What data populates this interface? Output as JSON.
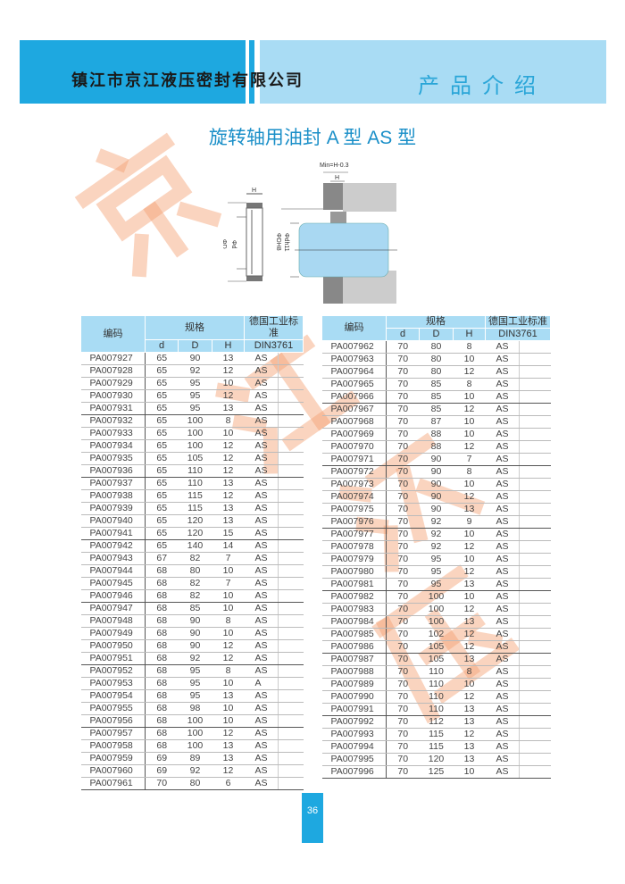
{
  "header": {
    "company": "镇江市京江液压密封有限公司",
    "section": "产品介绍"
  },
  "title": "旋转轴用油封 A 型   AS 型",
  "watermark": [
    "京",
    "江",
    "液",
    "压"
  ],
  "diagram": {
    "labels": {
      "min": "Min=H-0.3",
      "h": "H",
      "d_left": "Φd",
      "D_left": "ΦD",
      "DH8": "ΦDH8",
      "dh11": "Φdh11"
    }
  },
  "table_headers": {
    "code": "编码",
    "spec": "规格",
    "d": "d",
    "D": "D",
    "H": "H",
    "std": "德国工业标准",
    "din": "DIN3761"
  },
  "left_rows": [
    [
      "PA007927",
      "65",
      "90",
      "13",
      "AS"
    ],
    [
      "PA007928",
      "65",
      "92",
      "12",
      "AS"
    ],
    [
      "PA007929",
      "65",
      "95",
      "10",
      "AS"
    ],
    [
      "PA007930",
      "65",
      "95",
      "12",
      "AS"
    ],
    [
      "PA007931",
      "65",
      "95",
      "13",
      "AS"
    ],
    [
      "PA007932",
      "65",
      "100",
      "8",
      "AS"
    ],
    [
      "PA007933",
      "65",
      "100",
      "10",
      "AS"
    ],
    [
      "PA007934",
      "65",
      "100",
      "12",
      "AS"
    ],
    [
      "PA007935",
      "65",
      "105",
      "12",
      "AS"
    ],
    [
      "PA007936",
      "65",
      "110",
      "12",
      "AS"
    ],
    [
      "PA007937",
      "65",
      "110",
      "13",
      "AS"
    ],
    [
      "PA007938",
      "65",
      "115",
      "12",
      "AS"
    ],
    [
      "PA007939",
      "65",
      "115",
      "13",
      "AS"
    ],
    [
      "PA007940",
      "65",
      "120",
      "13",
      "AS"
    ],
    [
      "PA007941",
      "65",
      "120",
      "15",
      "AS"
    ],
    [
      "PA007942",
      "65",
      "140",
      "14",
      "AS"
    ],
    [
      "PA007943",
      "67",
      "82",
      "7",
      "AS"
    ],
    [
      "PA007944",
      "68",
      "80",
      "10",
      "AS"
    ],
    [
      "PA007945",
      "68",
      "82",
      "7",
      "AS"
    ],
    [
      "PA007946",
      "68",
      "82",
      "10",
      "AS"
    ],
    [
      "PA007947",
      "68",
      "85",
      "10",
      "AS"
    ],
    [
      "PA007948",
      "68",
      "90",
      "8",
      "AS"
    ],
    [
      "PA007949",
      "68",
      "90",
      "10",
      "AS"
    ],
    [
      "PA007950",
      "68",
      "90",
      "12",
      "AS"
    ],
    [
      "PA007951",
      "68",
      "92",
      "12",
      "AS"
    ],
    [
      "PA007952",
      "68",
      "95",
      "8",
      "AS"
    ],
    [
      "PA007953",
      "68",
      "95",
      "10",
      "A"
    ],
    [
      "PA007954",
      "68",
      "95",
      "13",
      "AS"
    ],
    [
      "PA007955",
      "68",
      "98",
      "10",
      "AS"
    ],
    [
      "PA007956",
      "68",
      "100",
      "10",
      "AS"
    ],
    [
      "PA007957",
      "68",
      "100",
      "12",
      "AS"
    ],
    [
      "PA007958",
      "68",
      "100",
      "13",
      "AS"
    ],
    [
      "PA007959",
      "69",
      "89",
      "13",
      "AS"
    ],
    [
      "PA007960",
      "69",
      "92",
      "12",
      "AS"
    ],
    [
      "PA007961",
      "70",
      "80",
      "6",
      "AS"
    ]
  ],
  "right_rows": [
    [
      "PA007962",
      "70",
      "80",
      "8",
      "AS"
    ],
    [
      "PA007963",
      "70",
      "80",
      "10",
      "AS"
    ],
    [
      "PA007964",
      "70",
      "80",
      "12",
      "AS"
    ],
    [
      "PA007965",
      "70",
      "85",
      "8",
      "AS"
    ],
    [
      "PA007966",
      "70",
      "85",
      "10",
      "AS"
    ],
    [
      "PA007967",
      "70",
      "85",
      "12",
      "AS"
    ],
    [
      "PA007968",
      "70",
      "87",
      "10",
      "AS"
    ],
    [
      "PA007969",
      "70",
      "88",
      "10",
      "AS"
    ],
    [
      "PA007970",
      "70",
      "88",
      "12",
      "AS"
    ],
    [
      "PA007971",
      "70",
      "90",
      "7",
      "AS"
    ],
    [
      "PA007972",
      "70",
      "90",
      "8",
      "AS"
    ],
    [
      "PA007973",
      "70",
      "90",
      "10",
      "AS"
    ],
    [
      "PA007974",
      "70",
      "90",
      "12",
      "AS"
    ],
    [
      "PA007975",
      "70",
      "90",
      "13",
      "AS"
    ],
    [
      "PA007976",
      "70",
      "92",
      "9",
      "AS"
    ],
    [
      "PA007977",
      "70",
      "92",
      "10",
      "AS"
    ],
    [
      "PA007978",
      "70",
      "92",
      "12",
      "AS"
    ],
    [
      "PA007979",
      "70",
      "95",
      "10",
      "AS"
    ],
    [
      "PA007980",
      "70",
      "95",
      "12",
      "AS"
    ],
    [
      "PA007981",
      "70",
      "95",
      "13",
      "AS"
    ],
    [
      "PA007982",
      "70",
      "100",
      "10",
      "AS"
    ],
    [
      "PA007983",
      "70",
      "100",
      "12",
      "AS"
    ],
    [
      "PA007984",
      "70",
      "100",
      "13",
      "AS"
    ],
    [
      "PA007985",
      "70",
      "102",
      "12",
      "AS"
    ],
    [
      "PA007986",
      "70",
      "105",
      "12",
      "AS"
    ],
    [
      "PA007987",
      "70",
      "105",
      "13",
      "AS"
    ],
    [
      "PA007988",
      "70",
      "110",
      "8",
      "AS"
    ],
    [
      "PA007989",
      "70",
      "110",
      "10",
      "AS"
    ],
    [
      "PA007990",
      "70",
      "110",
      "12",
      "AS"
    ],
    [
      "PA007991",
      "70",
      "110",
      "13",
      "AS"
    ],
    [
      "PA007992",
      "70",
      "112",
      "13",
      "AS"
    ],
    [
      "PA007993",
      "70",
      "115",
      "12",
      "AS"
    ],
    [
      "PA007994",
      "70",
      "115",
      "13",
      "AS"
    ],
    [
      "PA007995",
      "70",
      "120",
      "13",
      "AS"
    ],
    [
      "PA007996",
      "70",
      "125",
      "10",
      "AS"
    ]
  ],
  "page_number": "36",
  "colors": {
    "header_dark": "#1ea8e0",
    "header_light": "#a9dcf4",
    "title": "#1a8fc8",
    "watermark": "#f4a070"
  }
}
